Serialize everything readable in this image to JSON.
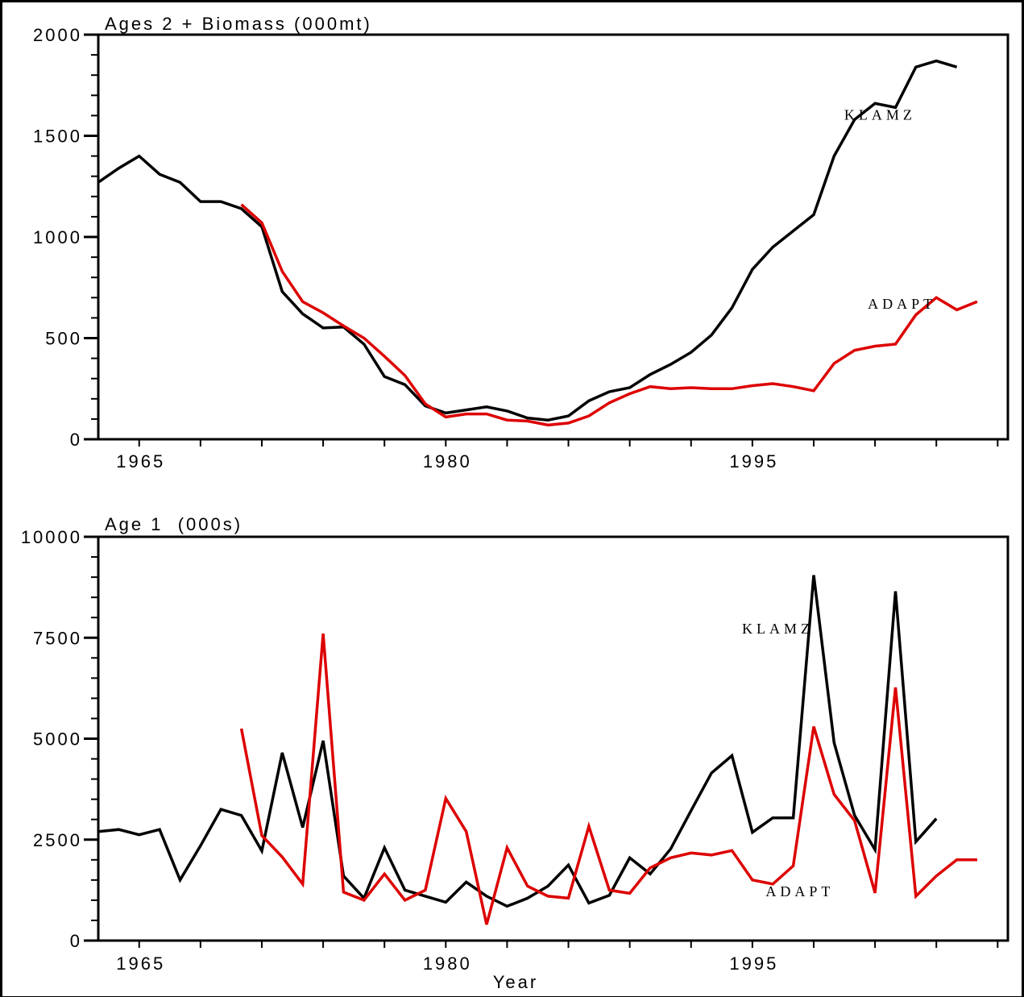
{
  "chart_data": [
    {
      "type": "line",
      "title": "Ages 2 + Biomass (000mt)",
      "xlabel": "",
      "ylabel": "",
      "ylim": [
        0,
        2000
      ],
      "xlim": [
        1963,
        2007.5
      ],
      "x_ticks": [
        1965,
        1980,
        1995
      ],
      "y_ticks": [
        0,
        500,
        1000,
        1500,
        2000
      ],
      "grid": false,
      "series": [
        {
          "name": "KLAMZ",
          "color": "#000000",
          "x": [
            1963,
            1964,
            1965,
            1966,
            1967,
            1968,
            1969,
            1970,
            1971,
            1972,
            1973,
            1974,
            1975,
            1976,
            1977,
            1978,
            1979,
            1980,
            1981,
            1982,
            1983,
            1984,
            1985,
            1986,
            1987,
            1988,
            1989,
            1990,
            1991,
            1992,
            1993,
            1994,
            1995,
            1996,
            1997,
            1998,
            1999,
            2000,
            2001,
            2002,
            2003,
            2004,
            2005,
            2006
          ],
          "values": [
            1270,
            1340,
            1400,
            1310,
            1270,
            1175,
            1175,
            1140,
            1050,
            730,
            620,
            550,
            555,
            470,
            310,
            270,
            165,
            130,
            145,
            160,
            140,
            105,
            95,
            115,
            190,
            235,
            255,
            320,
            370,
            430,
            515,
            650,
            840,
            950,
            1030,
            1110,
            1400,
            1580,
            1660,
            1640,
            1840,
            1870,
            1840,
            null
          ]
        },
        {
          "name": "ADAPT",
          "color": "#dd0000",
          "x": [
            1970,
            1971,
            1972,
            1973,
            1974,
            1975,
            1976,
            1977,
            1978,
            1979,
            1980,
            1981,
            1982,
            1983,
            1984,
            1985,
            1986,
            1987,
            1988,
            1989,
            1990,
            1991,
            1992,
            1993,
            1994,
            1995,
            1996,
            1997,
            1998,
            1999,
            2000,
            2001,
            2002,
            2003,
            2004,
            2005,
            2006,
            2007
          ],
          "values": [
            1160,
            1070,
            830,
            680,
            625,
            560,
            500,
            410,
            315,
            175,
            110,
            125,
            125,
            95,
            90,
            70,
            80,
            115,
            180,
            225,
            260,
            250,
            255,
            250,
            250,
            265,
            275,
            260,
            240,
            375,
            440,
            460,
            470,
            615,
            700,
            640,
            680,
            null
          ]
        }
      ],
      "annotations": [
        {
          "text": "KLAMZ",
          "x": 2003,
          "y": 1580
        },
        {
          "text": "ADAPT",
          "x": 2004,
          "y": 645
        }
      ]
    },
    {
      "type": "line",
      "title": "Age 1  (000s)",
      "xlabel": "Year",
      "ylabel": "",
      "ylim": [
        0,
        10000
      ],
      "xlim": [
        1963,
        2007.5
      ],
      "x_ticks": [
        1965,
        1980,
        1995
      ],
      "y_ticks": [
        0,
        2500,
        5000,
        7500,
        10000
      ],
      "grid": false,
      "series": [
        {
          "name": "KLAMZ",
          "color": "#000000",
          "x": [
            1963,
            1964,
            1965,
            1966,
            1967,
            1968,
            1969,
            1970,
            1971,
            1972,
            1973,
            1974,
            1975,
            1976,
            1977,
            1978,
            1979,
            1980,
            1981,
            1982,
            1983,
            1984,
            1985,
            1986,
            1987,
            1988,
            1989,
            1990,
            1991,
            1992,
            1993,
            1994,
            1995,
            1996,
            1997,
            1998,
            1999,
            2000,
            2001,
            2002,
            2003,
            2004,
            2005
          ],
          "values": [
            2700,
            2750,
            2620,
            2750,
            1500,
            2350,
            3250,
            3100,
            2220,
            4650,
            2800,
            4950,
            1600,
            1050,
            2300,
            1250,
            1100,
            950,
            1450,
            1100,
            850,
            1050,
            1350,
            1870,
            930,
            1120,
            2050,
            1650,
            2270,
            3220,
            4150,
            4580,
            2680,
            3040,
            3040,
            9050,
            4900,
            3100,
            2250,
            8650,
            2450,
            3020,
            null
          ]
        },
        {
          "name": "ADAPT",
          "color": "#dd0000",
          "x": [
            1970,
            1971,
            1972,
            1973,
            1974,
            1975,
            1976,
            1977,
            1978,
            1979,
            1980,
            1981,
            1982,
            1983,
            1984,
            1985,
            1986,
            1987,
            1988,
            1989,
            1990,
            1991,
            1992,
            1993,
            1994,
            1995,
            1996,
            1997,
            1998,
            1999,
            2000,
            2001,
            2002,
            2003,
            2004,
            2005,
            2006,
            2007
          ],
          "values": [
            5250,
            2600,
            2070,
            1400,
            7600,
            1200,
            1000,
            1650,
            1000,
            1250,
            3520,
            2700,
            400,
            2300,
            1350,
            1100,
            1050,
            2830,
            1250,
            1170,
            1800,
            2050,
            2170,
            2120,
            2230,
            1500,
            1400,
            1850,
            5300,
            3620,
            2970,
            1180,
            6270,
            1100,
            1600,
            2000,
            2000,
            null
          ]
        }
      ],
      "annotations": [
        {
          "text": "KLAMZ",
          "x": 1998,
          "y": 7600
        },
        {
          "text": "ADAPT",
          "x": 1999,
          "y": 1100
        }
      ]
    }
  ]
}
